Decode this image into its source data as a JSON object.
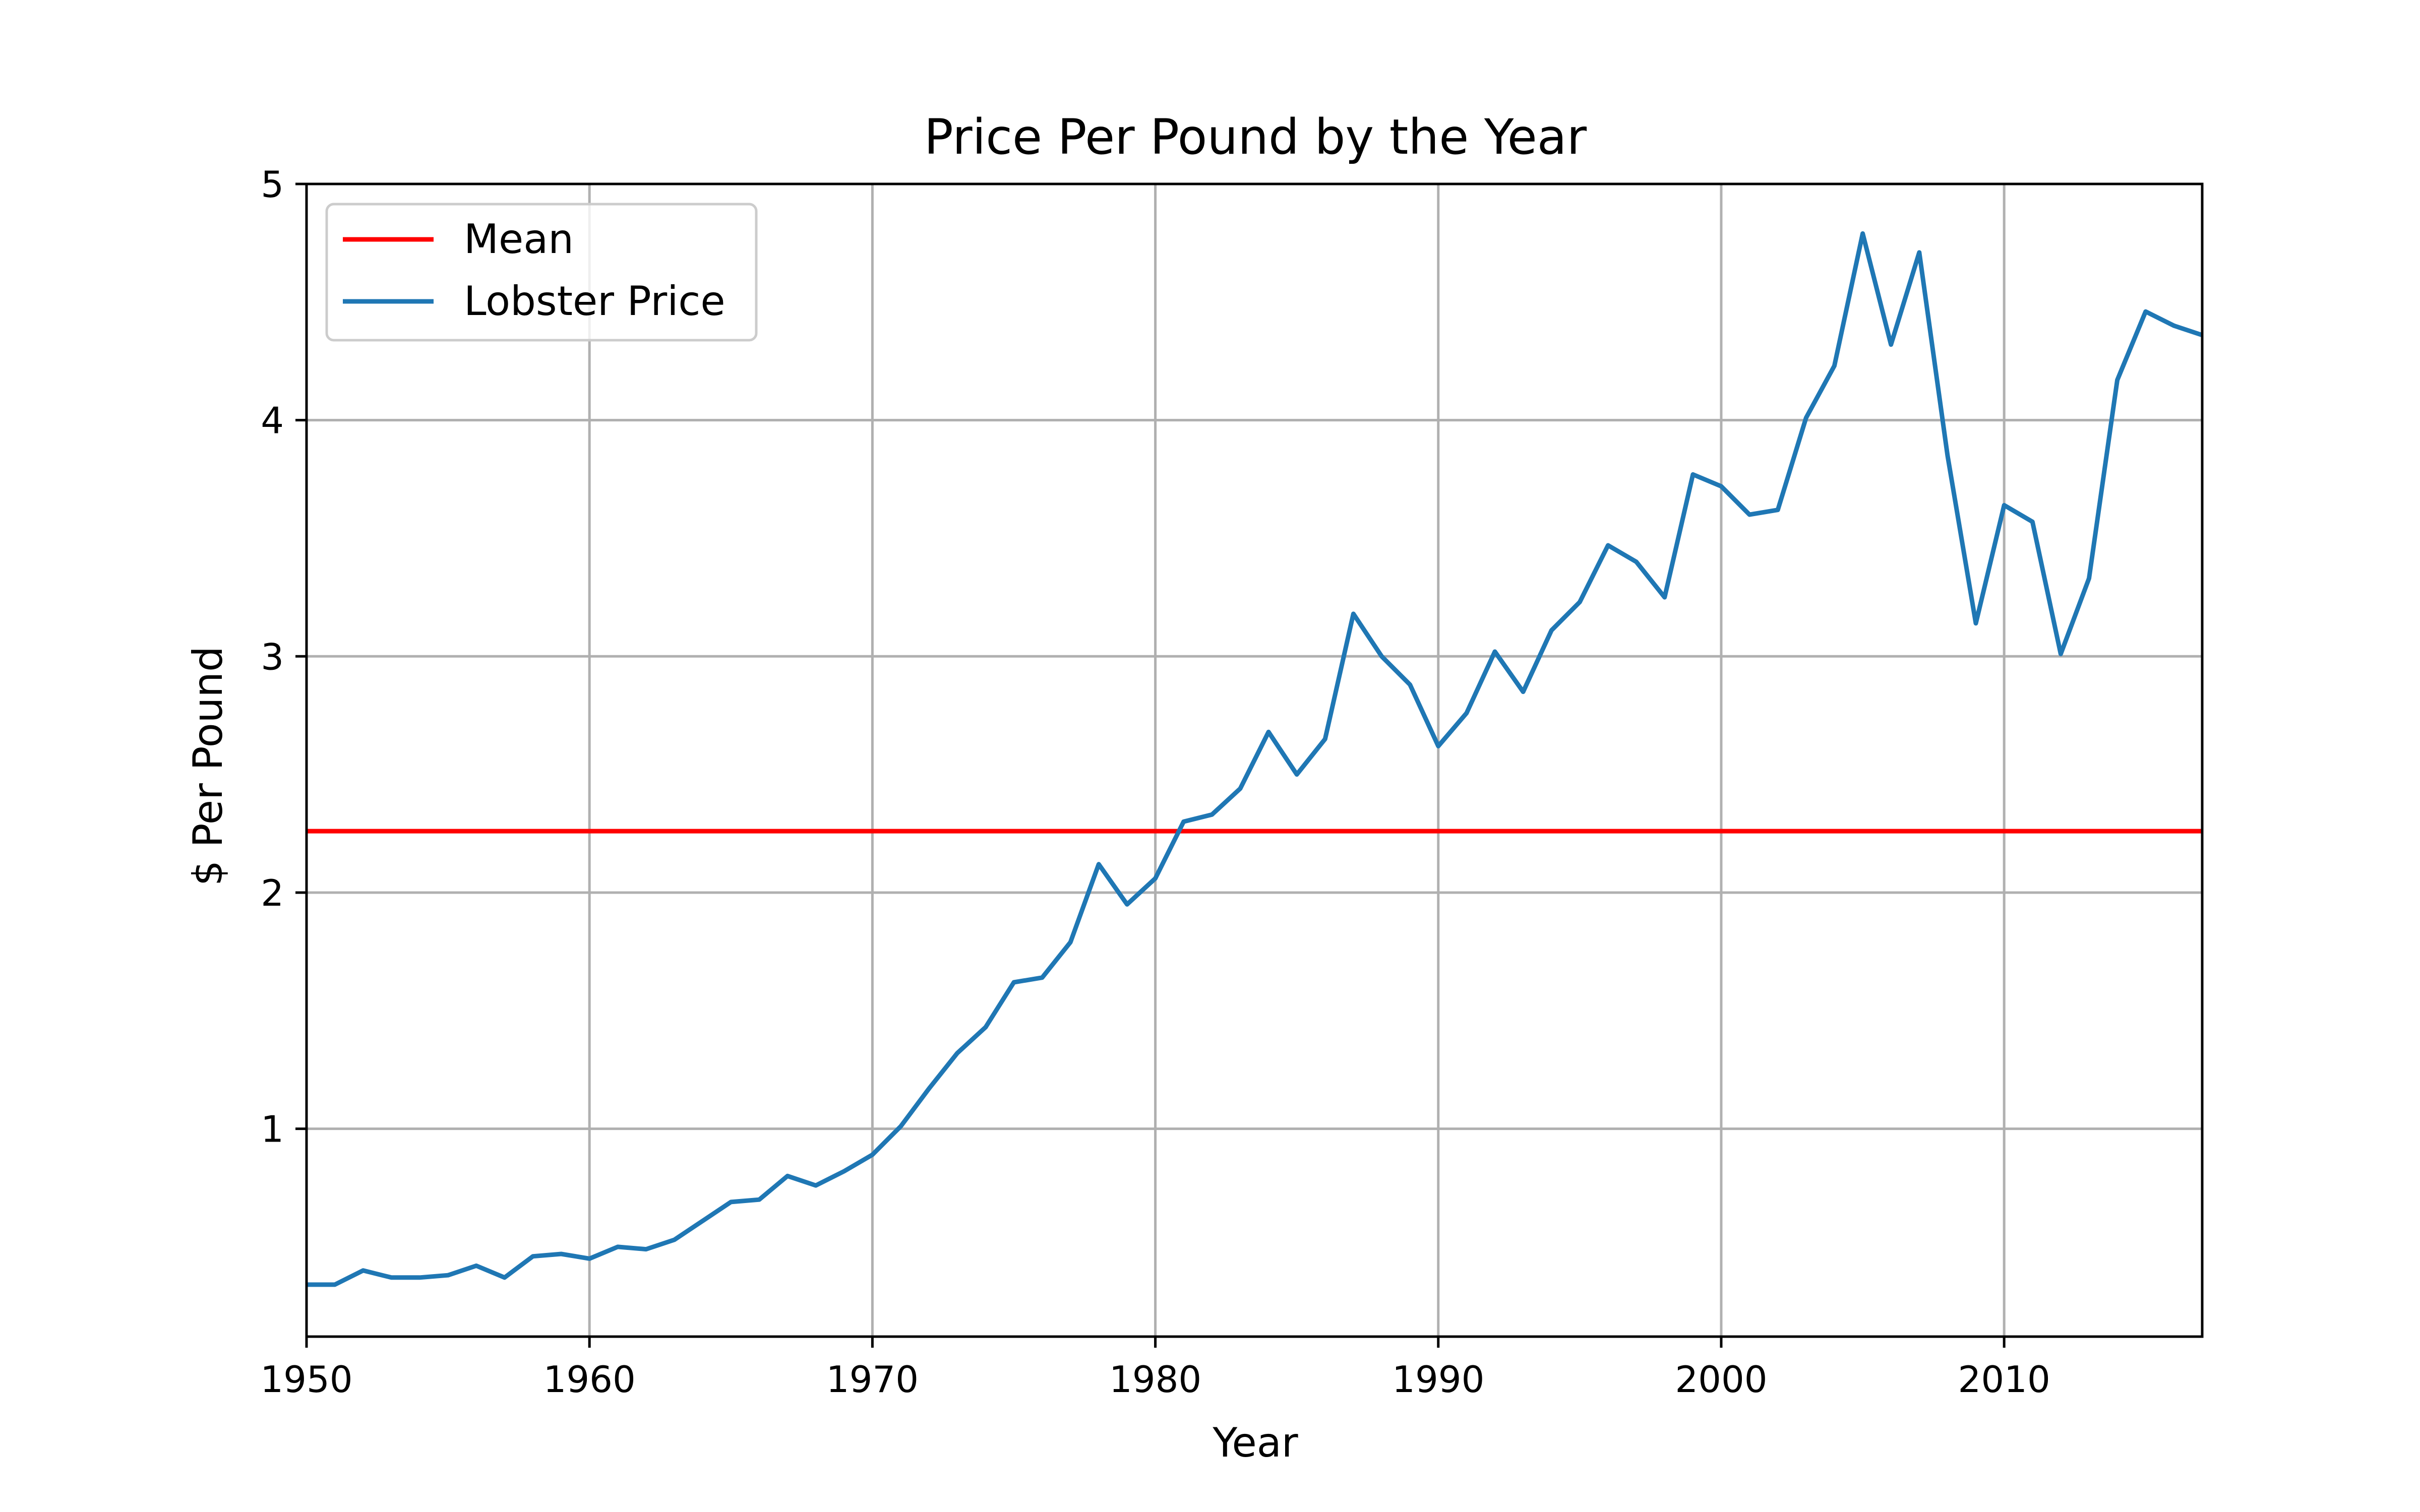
{
  "chart_data": {
    "type": "line",
    "title": "Price Per Pound by the Year",
    "xlabel": "Year",
    "ylabel": "$ Per Pound",
    "xlim": [
      1950,
      2017
    ],
    "ylim": [
      0.12,
      5.0
    ],
    "xticks": [
      1950,
      1960,
      1970,
      1980,
      1990,
      2000,
      2010
    ],
    "yticks": [
      1,
      2,
      3,
      4,
      5
    ],
    "grid": true,
    "legend_position": "top-left",
    "series": [
      {
        "name": "Mean",
        "color": "#ff0000",
        "x": [
          1950,
          2017
        ],
        "values": [
          2.26,
          2.26
        ]
      },
      {
        "name": "Lobster Price",
        "color": "#1f77b4",
        "x": [
          1950,
          1951,
          1952,
          1953,
          1954,
          1955,
          1956,
          1957,
          1958,
          1959,
          1960,
          1961,
          1962,
          1963,
          1964,
          1965,
          1966,
          1967,
          1968,
          1969,
          1970,
          1971,
          1972,
          1973,
          1974,
          1975,
          1976,
          1977,
          1978,
          1979,
          1980,
          1981,
          1982,
          1983,
          1984,
          1985,
          1986,
          1987,
          1988,
          1989,
          1990,
          1991,
          1992,
          1993,
          1994,
          1995,
          1996,
          1997,
          1998,
          1999,
          2000,
          2001,
          2002,
          2003,
          2004,
          2005,
          2006,
          2007,
          2008,
          2009,
          2010,
          2011,
          2012,
          2013,
          2014,
          2015,
          2016,
          2017
        ],
        "values": [
          0.34,
          0.34,
          0.4,
          0.37,
          0.37,
          0.38,
          0.42,
          0.37,
          0.46,
          0.47,
          0.45,
          0.5,
          0.49,
          0.53,
          0.61,
          0.69,
          0.7,
          0.8,
          0.76,
          0.82,
          0.89,
          1.01,
          1.17,
          1.32,
          1.43,
          1.62,
          1.64,
          1.79,
          2.12,
          1.95,
          2.06,
          2.3,
          2.33,
          2.44,
          2.68,
          2.5,
          2.65,
          3.18,
          3.0,
          2.88,
          2.62,
          2.76,
          3.02,
          2.85,
          3.11,
          3.23,
          3.47,
          3.4,
          3.25,
          3.77,
          3.72,
          3.6,
          3.62,
          4.01,
          4.23,
          4.79,
          4.32,
          4.71,
          3.85,
          3.14,
          3.64,
          3.57,
          3.01,
          3.33,
          4.17,
          4.46,
          4.4,
          4.36
        ]
      }
    ]
  }
}
